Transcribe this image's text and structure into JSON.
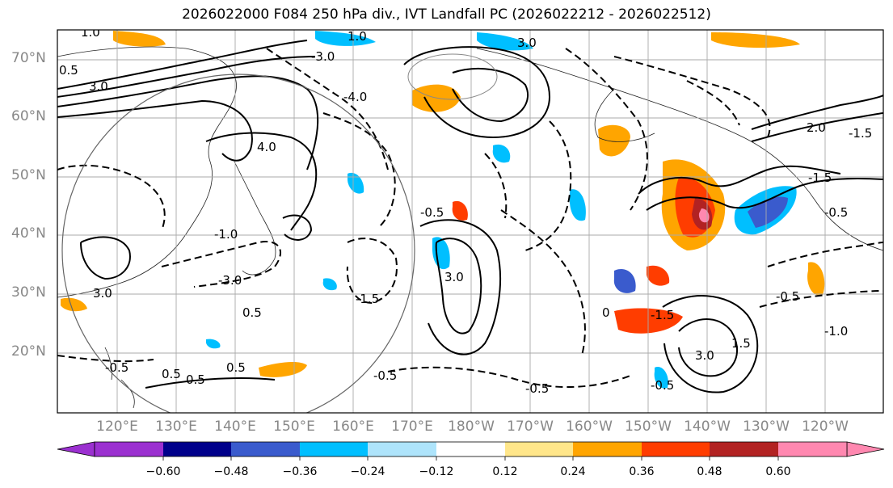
{
  "title": "2026022000 F084 250 hPa div., IVT Landfall PC (2026022212 - 2026022512)",
  "lat_labels": [
    "70°N",
    "60°N",
    "50°N",
    "40°N",
    "30°N",
    "20°N"
  ],
  "lon_labels": [
    "120°E",
    "130°E",
    "140°E",
    "150°E",
    "160°E",
    "170°E",
    "180°W",
    "170°W",
    "160°W",
    "150°W",
    "140°W",
    "130°W",
    "120°W"
  ],
  "colorbar": {
    "ticks": [
      "−0.60",
      "−0.48",
      "−0.36",
      "−0.24",
      "−0.12",
      "0.12",
      "0.24",
      "0.36",
      "0.48",
      "0.60"
    ],
    "colors": [
      "#9b30d0",
      "#00008b",
      "#3a5bcd",
      "#00bfff",
      "#aee4fb",
      "#ffffff",
      "#ffe68a",
      "#ffa500",
      "#ff3d00",
      "#b22222",
      "#ff88b0"
    ]
  },
  "contour_labels": [
    "3.0",
    "1.0",
    "0.5",
    "-3.0",
    "-4.0",
    "1.0",
    "4.0",
    "3.0",
    "-1.5",
    "-0.5",
    "-0.5",
    "-1.0",
    "-1.5",
    "0.5",
    "-0.5",
    "3.0",
    "0",
    "-0.5",
    "-3.0",
    "0.5",
    "-0.5",
    "-1.5",
    "3.0",
    "2.0",
    "1.5",
    "0.5",
    "-0.5",
    "-1.0",
    "0.5",
    "-0.5",
    "3.0",
    "-1.5"
  ],
  "colors": {
    "filled_pos": "#ffa500",
    "filled_neg": "#00bfff",
    "grid": "#aaaaaa"
  }
}
